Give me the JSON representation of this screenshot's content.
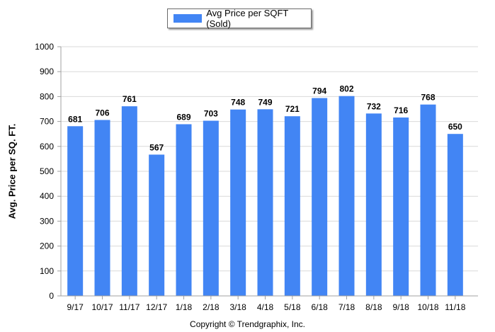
{
  "chart_data": {
    "type": "bar",
    "categories": [
      "9/17",
      "10/17",
      "11/17",
      "12/17",
      "1/18",
      "2/18",
      "3/18",
      "4/18",
      "5/18",
      "6/18",
      "7/18",
      "8/18",
      "9/18",
      "10/18",
      "11/18"
    ],
    "series": [
      {
        "name": "Avg Price per SQFT (Sold)",
        "values": [
          681,
          706,
          761,
          567,
          689,
          703,
          748,
          749,
          721,
          794,
          802,
          732,
          716,
          768,
          650
        ],
        "color": "#4285f4"
      }
    ],
    "ylabel": "Avg. Price per SQ. FT.",
    "xlabel": "",
    "ylim": [
      0,
      1000
    ],
    "yticks": [
      0,
      100,
      200,
      300,
      400,
      500,
      600,
      700,
      800,
      900,
      1000
    ],
    "grid": true,
    "legend_placement": "top-center"
  },
  "footer": {
    "copyright": "Copyright © Trendgraphix, Inc."
  }
}
